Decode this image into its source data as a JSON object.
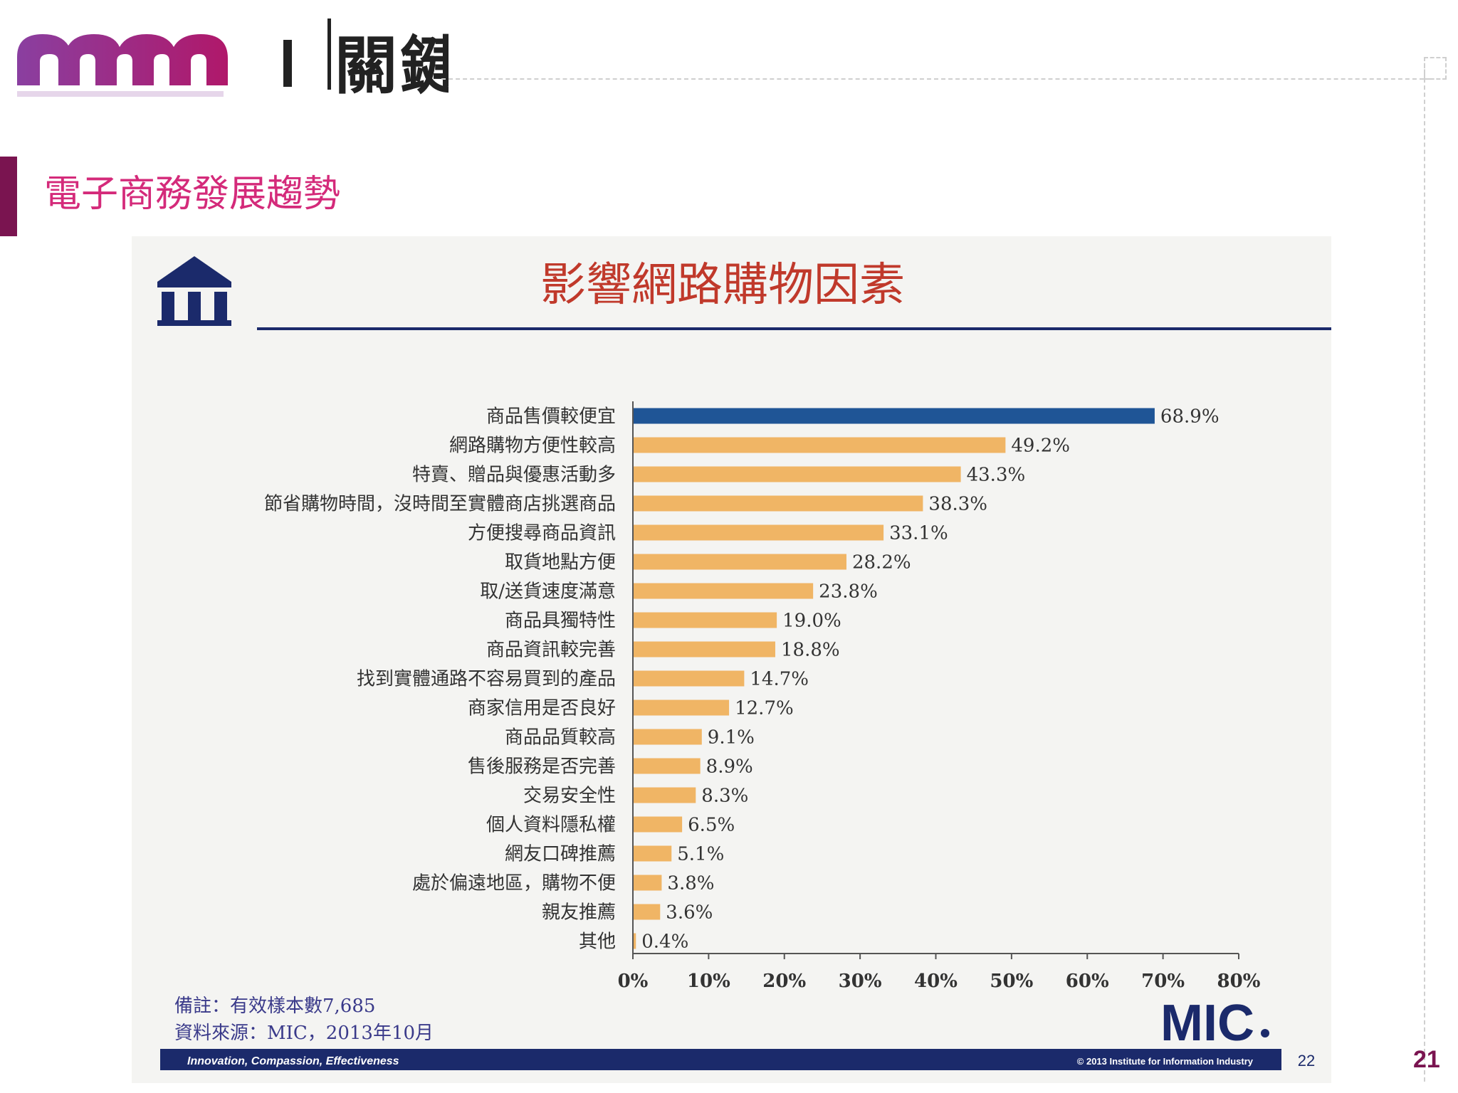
{
  "header": {
    "logo_text": "關鍵",
    "slide_title": "電子商務發展趨勢",
    "page_number": "21"
  },
  "panel": {
    "institute_icon": "institute-building-icon",
    "footer_left": "Innovation, Compassion, Effectiveness",
    "footer_right": "© 2013 Institute for Information Industry",
    "footer_page": "22",
    "mic_logo": "MIC",
    "note_line1": "備註：有效樣本數7,685",
    "note_line2": "資料來源：MIC，2013年10月"
  },
  "colors": {
    "accent": "#7a1450",
    "title_pink": "#d42a7a",
    "highlight_bar": "#1f5596",
    "bar": "#f0b565",
    "navy": "#1b2a6b",
    "chart_title": "#c0392b"
  },
  "chart_data": {
    "type": "bar",
    "orientation": "horizontal",
    "title": "影響網路購物因素",
    "categories": [
      "商品售價較便宜",
      "網路購物方便性較高",
      "特賣、贈品與優惠活動多",
      "節省購物時間，沒時間至實體商店挑選商品",
      "方便搜尋商品資訊",
      "取貨地點方便",
      "取/送貨速度滿意",
      "商品具獨特性",
      "商品資訊較完善",
      "找到實體通路不容易買到的產品",
      "商家信用是否良好",
      "商品品質較高",
      "售後服務是否完善",
      "交易安全性",
      "個人資料隱私權",
      "網友口碑推薦",
      "處於偏遠地區，購物不便",
      "親友推薦",
      "其他"
    ],
    "values": [
      68.9,
      49.2,
      43.3,
      38.3,
      33.1,
      28.2,
      23.8,
      19.0,
      18.8,
      14.7,
      12.7,
      9.1,
      8.9,
      8.3,
      6.5,
      5.1,
      3.8,
      3.6,
      0.4
    ],
    "value_labels": [
      "68.9%",
      "49.2%",
      "43.3%",
      "38.3%",
      "33.1%",
      "28.2%",
      "23.8%",
      "19.0%",
      "18.8%",
      "14.7%",
      "12.7%",
      "9.1%",
      "8.9%",
      "8.3%",
      "6.5%",
      "5.1%",
      "3.8%",
      "3.6%",
      "0.4%"
    ],
    "highlight_index": 0,
    "xlim": [
      0,
      80
    ],
    "xticks": [
      0,
      10,
      20,
      30,
      40,
      50,
      60,
      70,
      80
    ],
    "xtick_labels": [
      "0%",
      "10%",
      "20%",
      "30%",
      "40%",
      "50%",
      "60%",
      "70%",
      "80%"
    ],
    "xlabel": "",
    "ylabel": ""
  }
}
